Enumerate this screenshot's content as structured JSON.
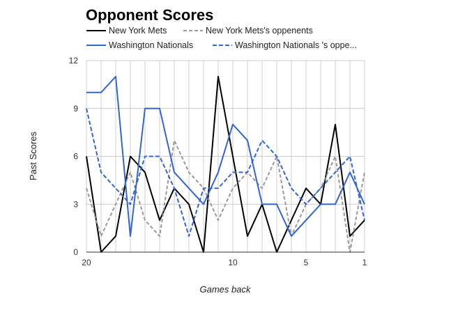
{
  "chart_data": {
    "type": "line",
    "title": "Opponent Scores",
    "xlabel": "Games back",
    "ylabel": "Past Scores",
    "xlim": [
      20,
      1
    ],
    "ylim": [
      0,
      12
    ],
    "x_ticks": [
      20,
      10,
      5,
      1
    ],
    "y_ticks": [
      0,
      3,
      6,
      9,
      12
    ],
    "grid": true,
    "legend_position": "top",
    "x": [
      20,
      19,
      18,
      17,
      16,
      15,
      14,
      13,
      12,
      11,
      10,
      9,
      8,
      7,
      6,
      5,
      4,
      3,
      2,
      1
    ],
    "series": [
      {
        "name": "New York Mets",
        "color": "#000000",
        "dash": "solid",
        "values": [
          6,
          0,
          1,
          6,
          5,
          2,
          4,
          3,
          0,
          11,
          6,
          1,
          3,
          0,
          2,
          4,
          3,
          8,
          1,
          2
        ]
      },
      {
        "name": "New York Mets's oppenents",
        "color": "#999999",
        "dash": "dashed",
        "values": [
          4,
          1,
          3,
          5,
          2,
          1,
          7,
          5,
          4,
          2,
          4,
          5,
          4,
          6,
          1,
          3,
          4,
          6,
          0,
          5
        ]
      },
      {
        "name": "Washington Nationals",
        "color": "#3366cc",
        "dash": "solid",
        "values": [
          10,
          10,
          11,
          1,
          9,
          9,
          5,
          4,
          3,
          5,
          8,
          7,
          3,
          3,
          1,
          2,
          3,
          3,
          5,
          3
        ]
      },
      {
        "name": "Washington Nationals 's oppe...",
        "color": "#3366cc",
        "dash": "dashed",
        "values": [
          9,
          5,
          4,
          3,
          6,
          6,
          4,
          1,
          4,
          4,
          5,
          5,
          7,
          6,
          4,
          3,
          4,
          5,
          6,
          2
        ]
      }
    ]
  }
}
